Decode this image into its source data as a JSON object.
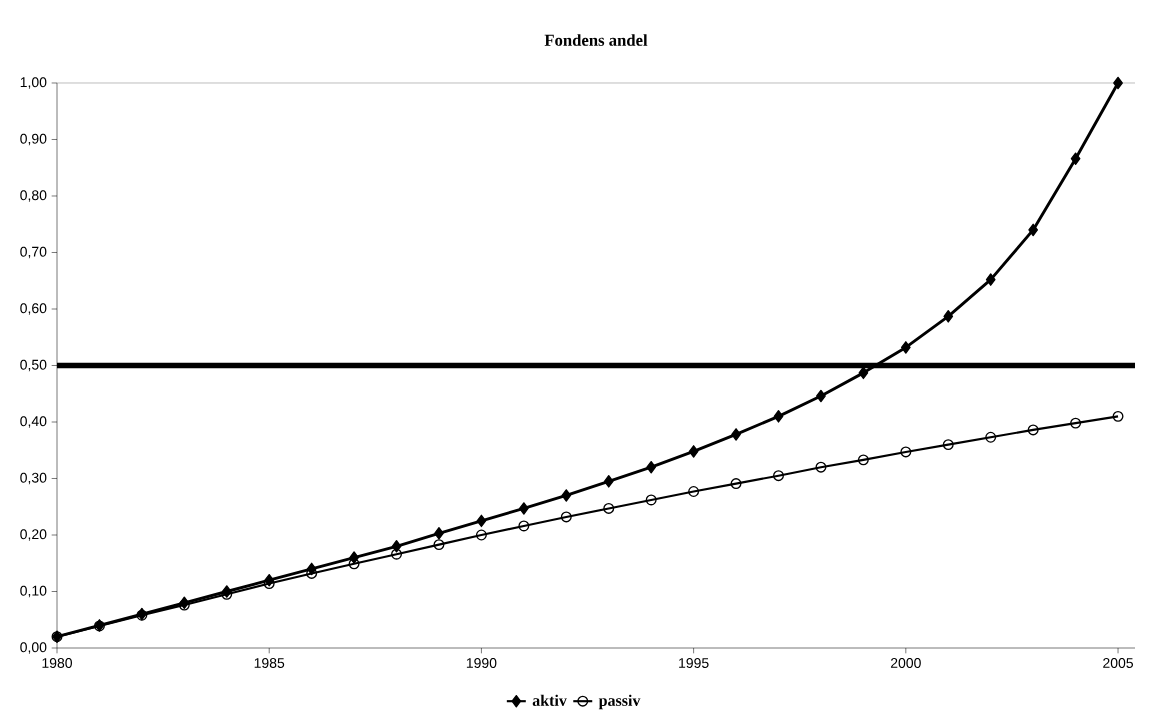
{
  "chart_data": {
    "type": "line",
    "title": "Fondens andel",
    "x": [
      1980,
      1981,
      1982,
      1983,
      1984,
      1985,
      1986,
      1987,
      1988,
      1989,
      1990,
      1991,
      1992,
      1993,
      1994,
      1995,
      1996,
      1997,
      1998,
      1999,
      2000,
      2001,
      2002,
      2003,
      2004,
      2005
    ],
    "series": [
      {
        "name": "aktiv",
        "color": "#000000",
        "marker": "diamond",
        "values": [
          0.02,
          0.04,
          0.06,
          0.08,
          0.1,
          0.12,
          0.14,
          0.16,
          0.18,
          0.203,
          0.225,
          0.247,
          0.27,
          0.295,
          0.32,
          0.348,
          0.378,
          0.41,
          0.446,
          0.487,
          0.532,
          0.587,
          0.652,
          0.74,
          0.866,
          1.0
        ]
      },
      {
        "name": "passiv",
        "color": "#000000",
        "marker": "circle",
        "values": [
          0.02,
          0.039,
          0.058,
          0.076,
          0.095,
          0.114,
          0.132,
          0.149,
          0.166,
          0.183,
          0.2,
          0.216,
          0.232,
          0.247,
          0.262,
          0.277,
          0.291,
          0.305,
          0.32,
          0.333,
          0.347,
          0.36,
          0.373,
          0.386,
          0.398,
          0.41
        ]
      }
    ],
    "xlim": [
      1980,
      2005.4
    ],
    "xticks": [
      1980,
      1985,
      1990,
      1995,
      2000,
      2005
    ],
    "ylim": [
      0,
      1
    ],
    "yticks": [
      {
        "value": 0,
        "label": "0,00"
      },
      {
        "value": 0.1,
        "label": "0,10"
      },
      {
        "value": 0.2,
        "label": "0,20"
      },
      {
        "value": 0.3,
        "label": "0,30"
      },
      {
        "value": 0.4,
        "label": "0,40"
      },
      {
        "value": 0.5,
        "label": "0,50"
      },
      {
        "value": 0.6,
        "label": "0,60"
      },
      {
        "value": 0.7,
        "label": "0,70"
      },
      {
        "value": 0.8,
        "label": "0,80"
      },
      {
        "value": 0.9,
        "label": "0,90"
      },
      {
        "value": 1,
        "label": "1,00"
      }
    ],
    "ref_lines": [
      {
        "axis": "y",
        "value": 0.5,
        "color": "#000000"
      }
    ],
    "legend": "bottom",
    "grid": false
  }
}
